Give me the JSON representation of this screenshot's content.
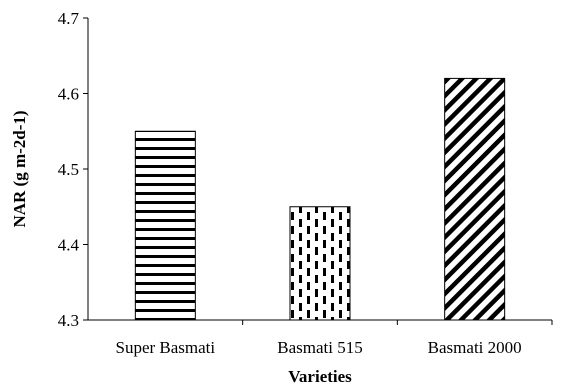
{
  "chart_data": {
    "type": "bar",
    "title": "",
    "xlabel": "Varieties",
    "ylabel": "NAR (g m-2d-1)",
    "ylim": [
      4.3,
      4.7
    ],
    "yticks": [
      4.3,
      4.4,
      4.5,
      4.6,
      4.7
    ],
    "ytick_labels": [
      "4.3",
      "4.4",
      "4.5",
      "4.6",
      "4.7"
    ],
    "categories": [
      "Super Basmati",
      "Basmati 515",
      "Basmati 2000"
    ],
    "values": [
      4.55,
      4.45,
      4.62
    ],
    "patterns": [
      "horizontal-lines",
      "vertical-dashes",
      "diagonal-lines"
    ],
    "grid": false,
    "legend": "none",
    "colors": {
      "fill": "#ffffff",
      "stroke": "#000000"
    }
  }
}
